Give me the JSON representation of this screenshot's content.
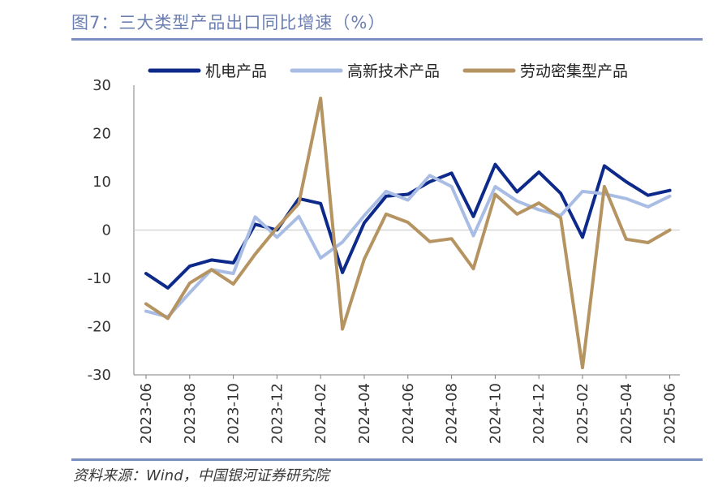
{
  "title": "图7：三大类型产品出口同比增速（%）",
  "source": "资料来源：Wind，中国银河证券研究院",
  "chart_data": {
    "type": "line",
    "title": "三大类型产品出口同比增速（%）",
    "xlabel": "",
    "ylabel": "",
    "ylim": [
      -30,
      30
    ],
    "yticks": [
      "30",
      "20",
      "10",
      "0",
      "-10",
      "-20",
      "-30"
    ],
    "x": [
      "2023-06",
      "2023-07",
      "2023-08",
      "2023-09",
      "2023-10",
      "2023-11",
      "2023-12",
      "2024-01",
      "2024-02",
      "2024-03",
      "2024-04",
      "2024-05",
      "2024-06",
      "2024-07",
      "2024-08",
      "2024-09",
      "2024-10",
      "2024-11",
      "2024-12",
      "2025-01",
      "2025-02",
      "2025-03",
      "2025-04",
      "2025-05",
      "2025-06"
    ],
    "xtick_labels": [
      "2023-06",
      "2023-08",
      "2023-10",
      "2023-12",
      "2024-02",
      "2024-04",
      "2024-06",
      "2024-08",
      "2024-10",
      "2024-12",
      "2025-02",
      "2025-04",
      "2025-06"
    ],
    "legend_position": "top",
    "grid": false,
    "series": [
      {
        "name": "机电产品",
        "color": "#0d2a8a",
        "values": [
          -9.0,
          -12.0,
          -7.5,
          -6.2,
          -6.8,
          1.2,
          0.0,
          6.5,
          5.5,
          -8.8,
          1.5,
          7.0,
          7.4,
          10.0,
          11.8,
          2.8,
          13.6,
          7.9,
          12.0,
          7.6,
          -1.5,
          13.3,
          10.0,
          7.2,
          8.2
        ]
      },
      {
        "name": "高新技术产品",
        "color": "#a9bde4",
        "values": [
          -16.8,
          -18.0,
          -13.0,
          -8.2,
          -9.0,
          2.7,
          -1.5,
          2.8,
          -5.8,
          -2.5,
          3.0,
          8.0,
          6.2,
          11.3,
          9.0,
          -1.2,
          9.0,
          6.0,
          4.2,
          3.0,
          8.0,
          7.5,
          6.5,
          4.8,
          7.0
        ]
      },
      {
        "name": "劳动密集型产品",
        "color": "#b59462",
        "values": [
          -15.3,
          -18.3,
          -11.0,
          -8.2,
          -11.2,
          -5.0,
          0.5,
          5.5,
          27.3,
          -20.5,
          -6.0,
          3.3,
          1.6,
          -2.4,
          -1.8,
          -8.0,
          7.4,
          3.3,
          5.6,
          2.5,
          -28.5,
          9.0,
          -1.9,
          -2.6,
          0.0
        ]
      }
    ]
  }
}
